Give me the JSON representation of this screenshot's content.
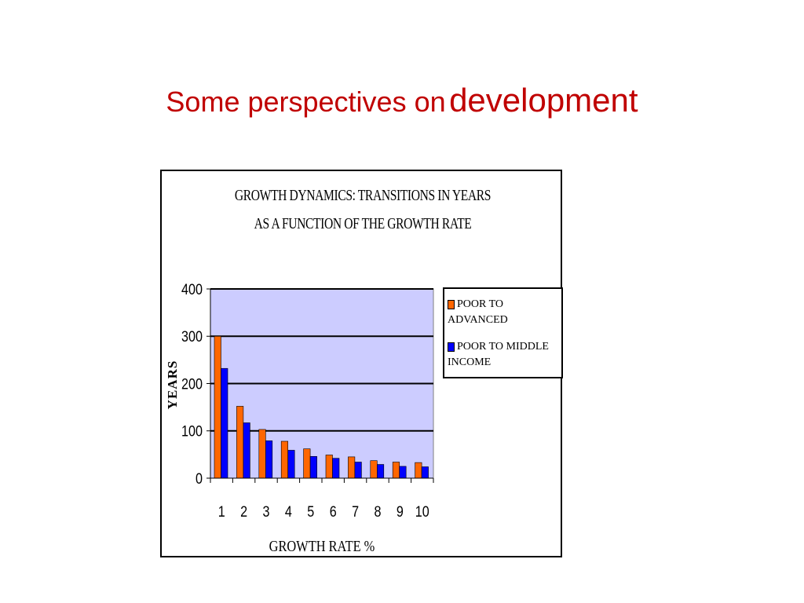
{
  "slide": {
    "title_part1": "Some perspectives on",
    "title_part2": "development"
  },
  "colors": {
    "title": "#c00000",
    "plot_background": "#ccccff",
    "series1": "#ff6600",
    "series2": "#0000ff"
  },
  "chart_data": {
    "type": "bar",
    "title_line1": "GROWTH  DYNAMICS: TRANSITIONS IN YEARS",
    "title_line2": "AS A FUNCTION OF THE GROWTH RATE",
    "xlabel": "GROWTH RATE %",
    "ylabel": "YEARS",
    "categories": [
      "1",
      "2",
      "3",
      "4",
      "5",
      "6",
      "7",
      "8",
      "9",
      "10"
    ],
    "ylim": [
      0,
      400
    ],
    "yticks": [
      0,
      100,
      200,
      300,
      400
    ],
    "grid": true,
    "legend_position": "right",
    "series": [
      {
        "name": "POOR TO ADVANCED",
        "color": "#ff6600",
        "values": [
          300,
          152,
          103,
          78,
          62,
          49,
          45,
          37,
          34,
          33
        ]
      },
      {
        "name": "POOR TO MIDDLE\nINCOME",
        "color": "#0000ff",
        "values": [
          232,
          117,
          79,
          59,
          46,
          42,
          34,
          29,
          25,
          24
        ]
      }
    ]
  }
}
